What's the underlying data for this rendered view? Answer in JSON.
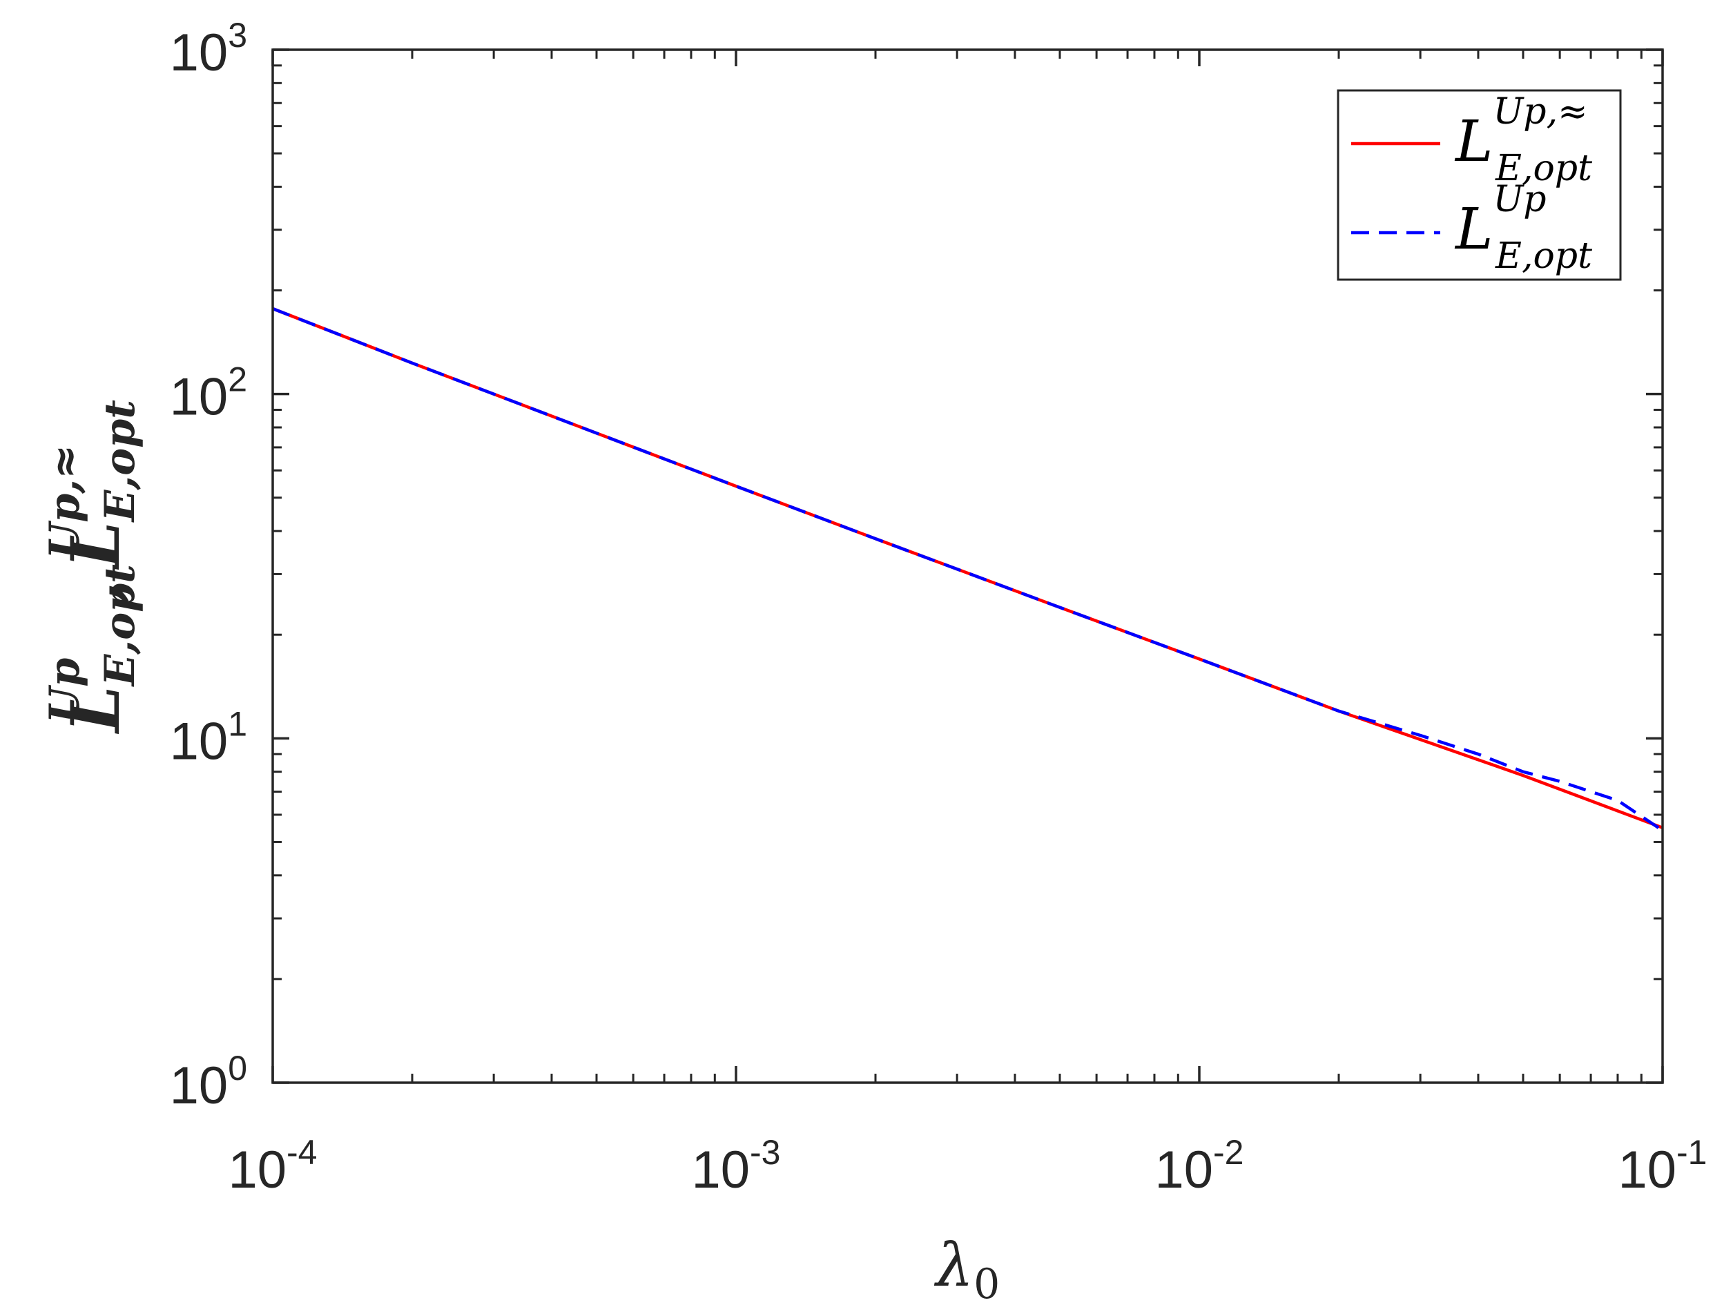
{
  "chart_data": {
    "type": "line",
    "xscale": "log",
    "yscale": "log",
    "xlim": [
      0.0001,
      0.1
    ],
    "ylim": [
      1,
      1000
    ],
    "x_ticks": [
      {
        "value": 0.0001,
        "base": "10",
        "exp": "-4"
      },
      {
        "value": 0.001,
        "base": "10",
        "exp": "-3"
      },
      {
        "value": 0.01,
        "base": "10",
        "exp": "-2"
      },
      {
        "value": 0.1,
        "base": "10",
        "exp": "-1"
      }
    ],
    "y_ticks": [
      {
        "value": 1,
        "base": "10",
        "exp": "0"
      },
      {
        "value": 10,
        "base": "10",
        "exp": "1"
      },
      {
        "value": 100,
        "base": "10",
        "exp": "2"
      },
      {
        "value": 1000,
        "base": "10",
        "exp": "3"
      }
    ],
    "xlabel": {
      "main": "λ",
      "sub": "0"
    },
    "ylabel": {
      "part1": {
        "main": "L",
        "sup": "Up",
        "sub": "E,opt"
      },
      "separator": ",",
      "part2": {
        "main": "L",
        "sup": "Up,≈",
        "sub": "E,opt"
      }
    },
    "grid": false,
    "legend_position": "top-right",
    "series": [
      {
        "name": {
          "main": "L",
          "sup": "Up,≈",
          "sub": "E,opt"
        },
        "color": "#ff0000",
        "style": "solid",
        "x": [
          0.0001,
          0.0002,
          0.0005,
          0.001,
          0.002,
          0.005,
          0.01,
          0.02,
          0.05,
          0.1
        ],
        "y": [
          177,
          123,
          77,
          54,
          38,
          24,
          17,
          12,
          7.8,
          5.5
        ]
      },
      {
        "name": {
          "main": "L",
          "sup": "Up",
          "sub": "E,opt"
        },
        "color": "#0000ff",
        "style": "dashed",
        "x": [
          0.0001,
          0.0002,
          0.0005,
          0.001,
          0.002,
          0.005,
          0.01,
          0.02,
          0.03,
          0.04,
          0.05,
          0.06,
          0.08,
          0.1
        ],
        "y": [
          177,
          123,
          77,
          54,
          38,
          24,
          17,
          12,
          10.2,
          9.0,
          8.0,
          7.5,
          6.6,
          5.4
        ]
      }
    ]
  }
}
